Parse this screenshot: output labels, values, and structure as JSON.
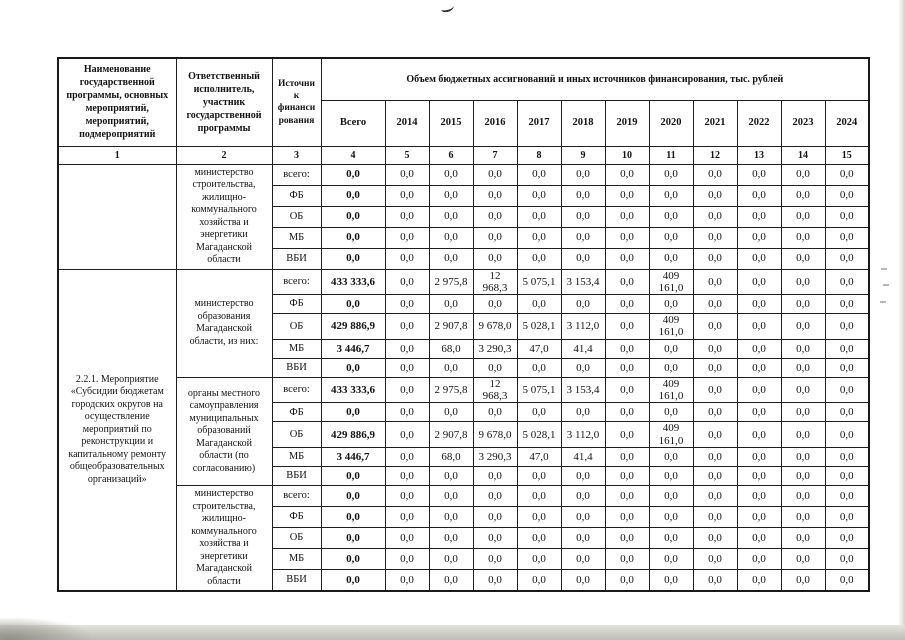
{
  "table": {
    "header": {
      "col_name": "Наименование государственной программы, основных мероприятий, мероприятий, подмероприятий",
      "col_executor": "Ответственный исполнитель, участник государственной программы",
      "col_source": "Источник финансирования",
      "group_title": "Объем бюджетных ассигнований и иных источников финансирования, тыс. рублей",
      "year_cols": [
        "Всего",
        "2014",
        "2015",
        "2016",
        "2017",
        "2018",
        "2019",
        "2020",
        "2021",
        "2022",
        "2023",
        "2024"
      ],
      "number_row": [
        "1",
        "2",
        "3",
        "4",
        "5",
        "6",
        "7",
        "8",
        "9",
        "10",
        "11",
        "12",
        "13",
        "14",
        "15"
      ]
    },
    "groups": [
      {
        "name": "",
        "executors": [
          {
            "executor": "министерство строительства, жилищно-коммунального хозяйства и энергетики Магаданской области",
            "rows": [
              {
                "source": "всего:",
                "values": [
                  "0,0",
                  "0,0",
                  "0,0",
                  "0,0",
                  "0,0",
                  "0,0",
                  "0,0",
                  "0,0",
                  "0,0",
                  "0,0",
                  "0,0",
                  "0,0"
                ]
              },
              {
                "source": "ФБ",
                "values": [
                  "0,0",
                  "0,0",
                  "0,0",
                  "0,0",
                  "0,0",
                  "0,0",
                  "0,0",
                  "0,0",
                  "0,0",
                  "0,0",
                  "0,0",
                  "0,0"
                ]
              },
              {
                "source": "ОБ",
                "values": [
                  "0,0",
                  "0,0",
                  "0,0",
                  "0,0",
                  "0,0",
                  "0,0",
                  "0,0",
                  "0,0",
                  "0,0",
                  "0,0",
                  "0,0",
                  "0,0"
                ]
              },
              {
                "source": "МБ",
                "values": [
                  "0,0",
                  "0,0",
                  "0,0",
                  "0,0",
                  "0,0",
                  "0,0",
                  "0,0",
                  "0,0",
                  "0,0",
                  "0,0",
                  "0,0",
                  "0,0"
                ]
              },
              {
                "source": "ВБИ",
                "values": [
                  "0,0",
                  "0,0",
                  "0,0",
                  "0,0",
                  "0,0",
                  "0,0",
                  "0,0",
                  "0,0",
                  "0,0",
                  "0,0",
                  "0,0",
                  "0,0"
                ]
              }
            ]
          }
        ]
      },
      {
        "name": "2.2.1. Мероприятие «Субсидии бюджетам городских округов на осуществление мероприятий по реконструкции и капитальному ремонту общеобразовательных организаций»",
        "executors": [
          {
            "executor": "министерство образования Магаданской области, из них:",
            "rows": [
              {
                "source": "всего:",
                "values": [
                  "433 333,6",
                  "0,0",
                  "2 975,8",
                  "12 968,3",
                  "5 075,1",
                  "3 153,4",
                  "0,0",
                  "409 161,0",
                  "0,0",
                  "0,0",
                  "0,0",
                  "0,0"
                ]
              },
              {
                "source": "ФБ",
                "values": [
                  "0,0",
                  "0,0",
                  "0,0",
                  "0,0",
                  "0,0",
                  "0,0",
                  "0,0",
                  "0,0",
                  "0,0",
                  "0,0",
                  "0,0",
                  "0,0"
                ]
              },
              {
                "source": "ОБ",
                "values": [
                  "429 886,9",
                  "0,0",
                  "2 907,8",
                  "9 678,0",
                  "5 028,1",
                  "3 112,0",
                  "0,0",
                  "409 161,0",
                  "0,0",
                  "0,0",
                  "0,0",
                  "0,0"
                ]
              },
              {
                "source": "МБ",
                "values": [
                  "3 446,7",
                  "0,0",
                  "68,0",
                  "3 290,3",
                  "47,0",
                  "41,4",
                  "0,0",
                  "0,0",
                  "0,0",
                  "0,0",
                  "0,0",
                  "0,0"
                ]
              },
              {
                "source": "ВБИ",
                "values": [
                  "0,0",
                  "0,0",
                  "0,0",
                  "0,0",
                  "0,0",
                  "0,0",
                  "0,0",
                  "0,0",
                  "0,0",
                  "0,0",
                  "0,0",
                  "0,0"
                ]
              }
            ]
          },
          {
            "executor": "органы местного самоуправления муниципальных образований Магаданской области (по согласованию)",
            "rows": [
              {
                "source": "всего:",
                "values": [
                  "433 333,6",
                  "0,0",
                  "2 975,8",
                  "12 968,3",
                  "5 075,1",
                  "3 153,4",
                  "0,0",
                  "409 161,0",
                  "0,0",
                  "0,0",
                  "0,0",
                  "0,0"
                ]
              },
              {
                "source": "ФБ",
                "values": [
                  "0,0",
                  "0,0",
                  "0,0",
                  "0,0",
                  "0,0",
                  "0,0",
                  "0,0",
                  "0,0",
                  "0,0",
                  "0,0",
                  "0,0",
                  "0,0"
                ]
              },
              {
                "source": "ОБ",
                "values": [
                  "429 886,9",
                  "0,0",
                  "2 907,8",
                  "9 678,0",
                  "5 028,1",
                  "3 112,0",
                  "0,0",
                  "409 161,0",
                  "0,0",
                  "0,0",
                  "0,0",
                  "0,0"
                ]
              },
              {
                "source": "МБ",
                "values": [
                  "3 446,7",
                  "0,0",
                  "68,0",
                  "3 290,3",
                  "47,0",
                  "41,4",
                  "0,0",
                  "0,0",
                  "0,0",
                  "0,0",
                  "0,0",
                  "0,0"
                ]
              },
              {
                "source": "ВБИ",
                "values": [
                  "0,0",
                  "0,0",
                  "0,0",
                  "0,0",
                  "0,0",
                  "0,0",
                  "0,0",
                  "0,0",
                  "0,0",
                  "0,0",
                  "0,0",
                  "0,0"
                ]
              }
            ]
          },
          {
            "executor": "министерство строительства, жилищно-коммунального хозяйства и энергетики Магаданской области",
            "rows": [
              {
                "source": "всего:",
                "values": [
                  "0,0",
                  "0,0",
                  "0,0",
                  "0,0",
                  "0,0",
                  "0,0",
                  "0,0",
                  "0,0",
                  "0,0",
                  "0,0",
                  "0,0",
                  "0,0"
                ]
              },
              {
                "source": "ФБ",
                "values": [
                  "0,0",
                  "0,0",
                  "0,0",
                  "0,0",
                  "0,0",
                  "0,0",
                  "0,0",
                  "0,0",
                  "0,0",
                  "0,0",
                  "0,0",
                  "0,0"
                ]
              },
              {
                "source": "ОБ",
                "values": [
                  "0,0",
                  "0,0",
                  "0,0",
                  "0,0",
                  "0,0",
                  "0,0",
                  "0,0",
                  "0,0",
                  "0,0",
                  "0,0",
                  "0,0",
                  "0,0"
                ]
              },
              {
                "source": "МБ",
                "values": [
                  "0,0",
                  "0,0",
                  "0,0",
                  "0,0",
                  "0,0",
                  "0,0",
                  "0,0",
                  "0,0",
                  "0,0",
                  "0,0",
                  "0,0",
                  "0,0"
                ]
              },
              {
                "source": "ВБИ",
                "values": [
                  "0,0",
                  "0,0",
                  "0,0",
                  "0,0",
                  "0,0",
                  "0,0",
                  "0,0",
                  "0,0",
                  "0,0",
                  "0,0",
                  "0,0",
                  "0,0"
                ]
              }
            ]
          }
        ]
      }
    ]
  }
}
